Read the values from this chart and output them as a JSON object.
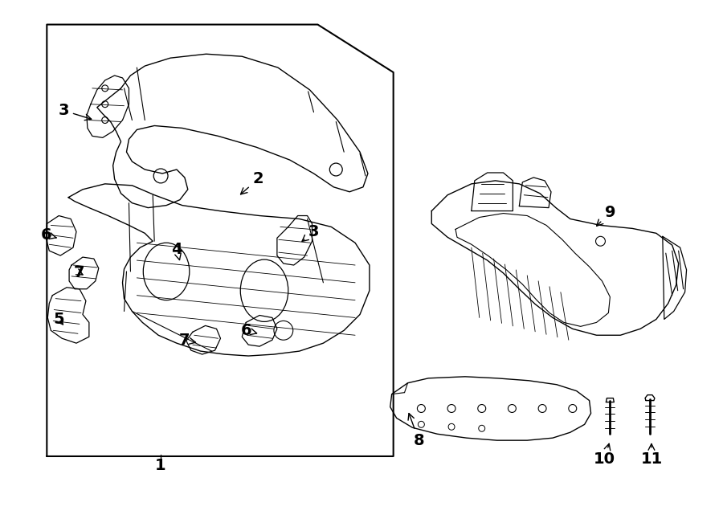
{
  "bg_color": "#ffffff",
  "line_color": "#000000",
  "label_fontsize": 14
}
